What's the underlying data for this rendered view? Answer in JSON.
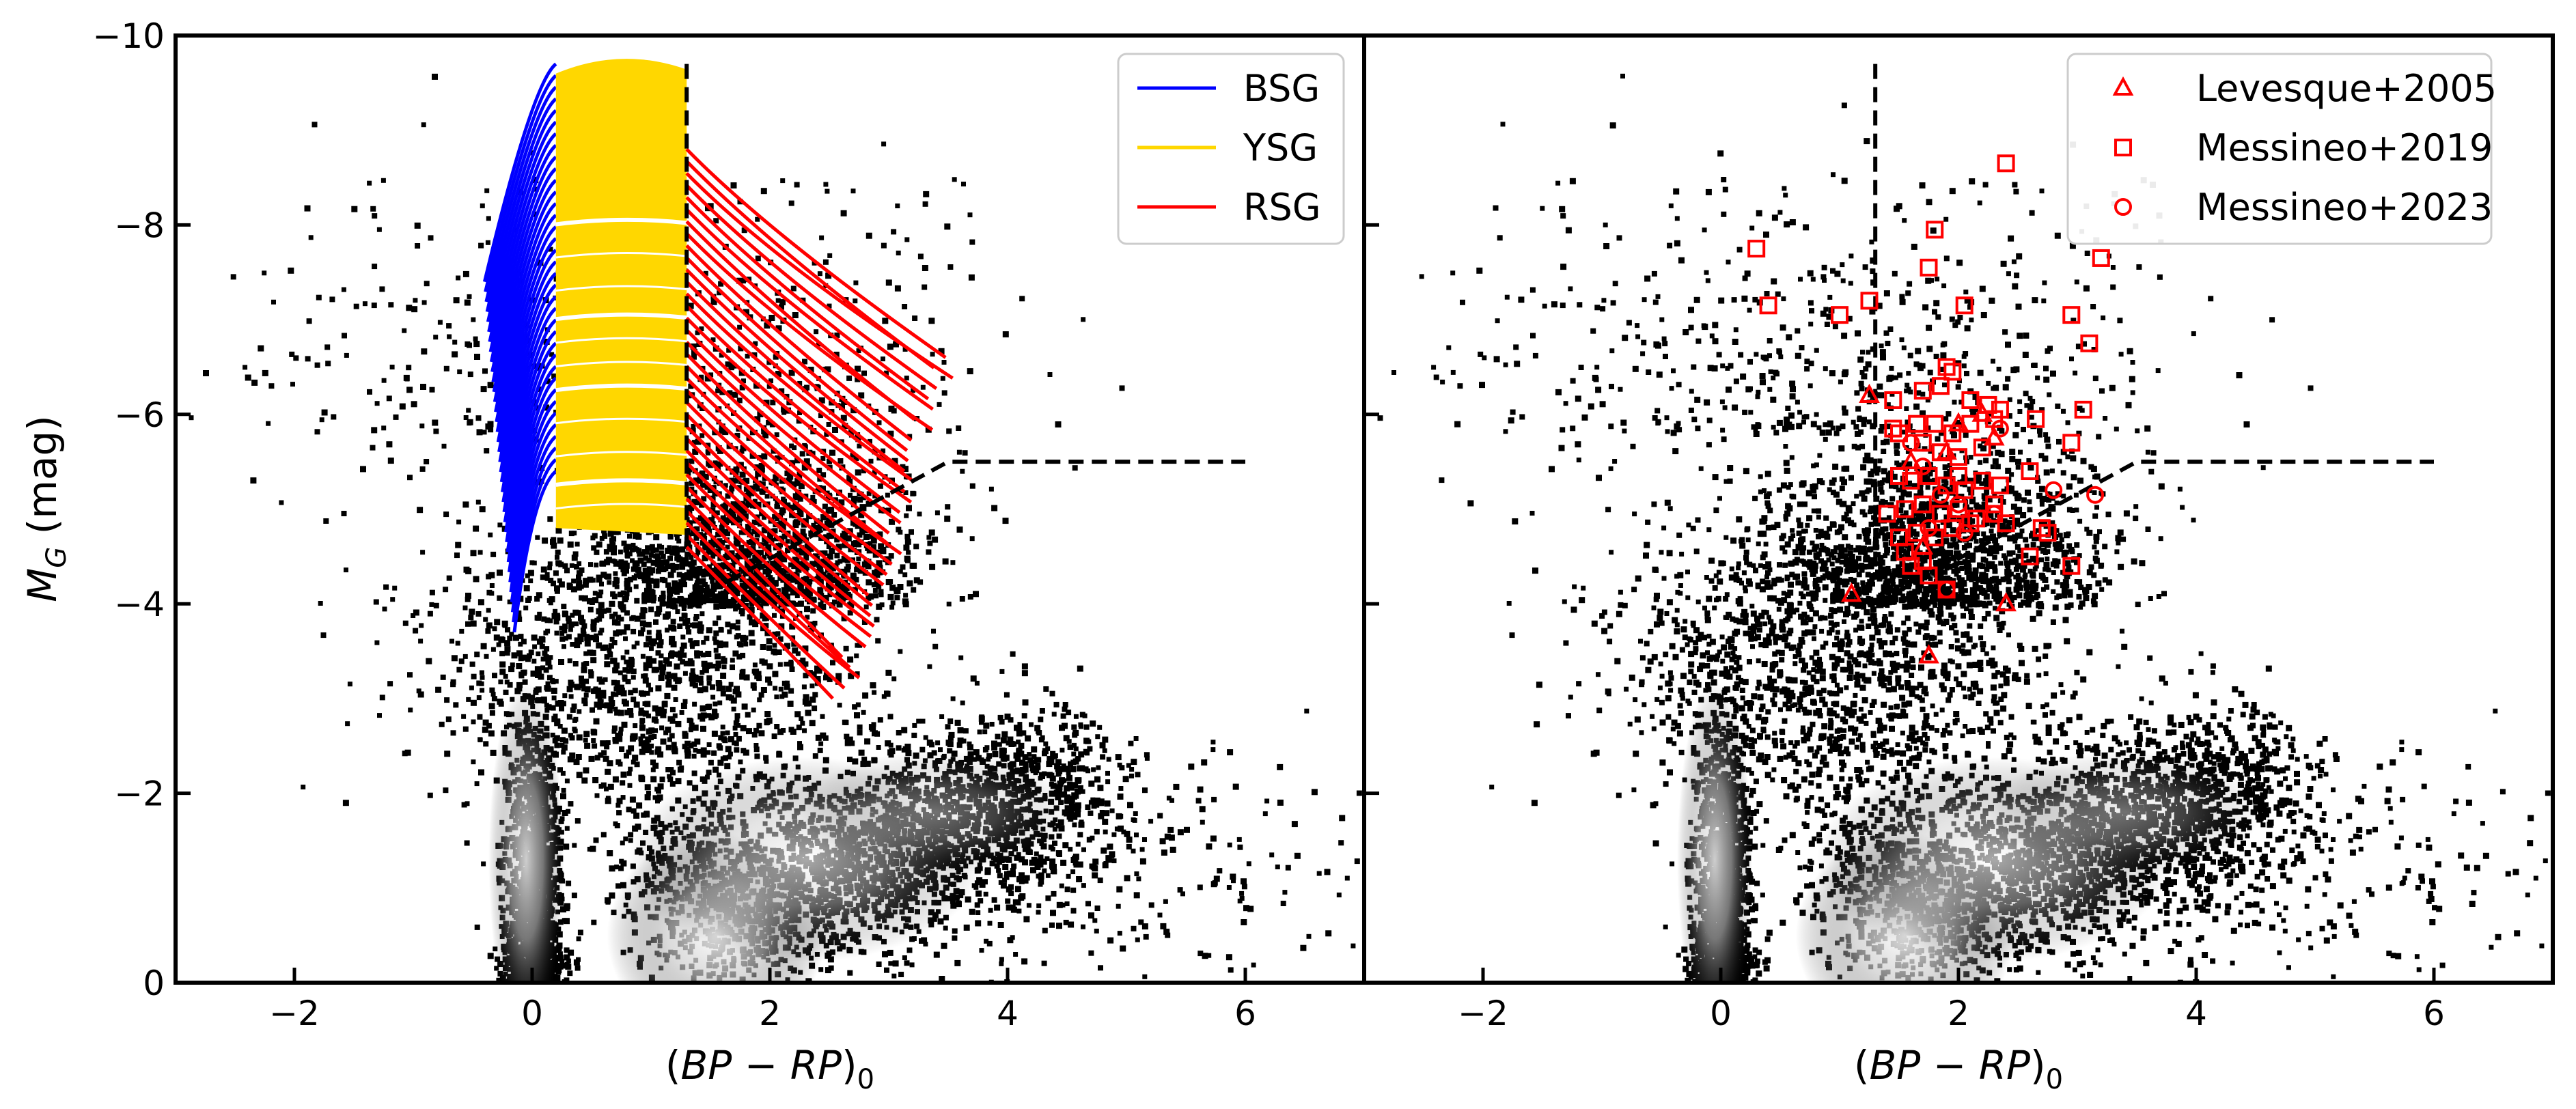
{
  "chart_data": [
    {
      "type": "scatter",
      "panel": "left",
      "title": "",
      "xlabel": "(BP − RP)₀",
      "xlabel_parts": [
        "(",
        "BP",
        " − ",
        "RP",
        ")",
        "0"
      ],
      "ylabel": "M_G (mag)",
      "ylabel_parts": [
        "M",
        "G",
        " (mag)"
      ],
      "xlim": [
        -3,
        7
      ],
      "ylim": [
        0,
        -10
      ],
      "y_inverted": true,
      "xticks": [
        -2,
        0,
        2,
        4,
        6
      ],
      "xtick_labels": [
        "−2",
        "0",
        "2",
        "4",
        "6"
      ],
      "yticks": [
        0,
        -2,
        -4,
        -6,
        -8,
        -10
      ],
      "ytick_labels": [
        "0",
        "−2",
        "−4",
        "−6",
        "−8",
        "−10"
      ],
      "background": "grayscale 2D density histogram of Gaia stars",
      "grid": false,
      "legend_position": "top-right",
      "legend": [
        {
          "label": "BSG",
          "color": "#0000ff",
          "marker": "line"
        },
        {
          "label": "YSG",
          "color": "#ffd700",
          "marker": "line"
        },
        {
          "label": "RSG",
          "color": "#ff0000",
          "marker": "line"
        }
      ],
      "dashed_lines": [
        {
          "type": "vertical",
          "x": 1.3,
          "y_range": [
            -9.7,
            -4.3
          ]
        },
        {
          "type": "polyline",
          "points": [
            [
              1.3,
              -4.0
            ],
            [
              3.5,
              -5.5
            ],
            [
              6.0,
              -5.5
            ]
          ]
        }
      ],
      "track_regions": [
        {
          "name": "BSG",
          "color": "#0000ff",
          "x_range": [
            -0.4,
            0.2
          ],
          "y_range": [
            -5.1,
            -9.7
          ]
        },
        {
          "name": "YSG",
          "color": "#ffd700",
          "x_range": [
            0.2,
            1.3
          ],
          "y_range": [
            -4.8,
            -9.8
          ]
        },
        {
          "name": "RSG",
          "color": "#ff0000",
          "x_range": [
            1.3,
            3.5
          ],
          "y_range": [
            -4.1,
            -8.8
          ]
        }
      ]
    },
    {
      "type": "scatter",
      "panel": "right",
      "title": "",
      "xlabel": "(BP − RP)₀",
      "xlabel_parts": [
        "(",
        "BP",
        " − ",
        "RP",
        ")",
        "0"
      ],
      "ylabel": "",
      "xlim": [
        -3,
        7
      ],
      "ylim": [
        0,
        -10
      ],
      "y_inverted": true,
      "xticks": [
        -2,
        0,
        2,
        4,
        6
      ],
      "xtick_labels": [
        "−2",
        "0",
        "2",
        "4",
        "6"
      ],
      "grid": false,
      "legend_position": "top-right",
      "marker_color": "#ff0000",
      "legend": [
        {
          "label": "Levesque+2005",
          "color": "#ff0000",
          "marker": "triangle-open"
        },
        {
          "label": "Messineo+2019",
          "color": "#ff0000",
          "marker": "square-open"
        },
        {
          "label": "Messineo+2023",
          "color": "#ff0000",
          "marker": "circle-open"
        }
      ],
      "dashed_lines": [
        {
          "type": "vertical",
          "x": 1.3,
          "y_range": [
            -9.7,
            -4.3
          ]
        },
        {
          "type": "polyline",
          "points": [
            [
              1.3,
              -4.0
            ],
            [
              3.5,
              -5.5
            ],
            [
              6.0,
              -5.5
            ]
          ]
        }
      ],
      "series": [
        {
          "name": "Levesque+2005",
          "marker": "triangle-open",
          "points": [
            [
              1.25,
              -6.2
            ],
            [
              2.3,
              -5.75
            ],
            [
              1.1,
              -4.1
            ],
            [
              1.75,
              -3.45
            ],
            [
              2.4,
              -4.0
            ],
            [
              2.0,
              -5.9
            ],
            [
              1.7,
              -4.6
            ],
            [
              2.2,
              -6.0
            ],
            [
              1.6,
              -5.5
            ],
            [
              1.9,
              -5.6
            ]
          ]
        },
        {
          "name": "Messineo+2019",
          "marker": "square-open",
          "points": [
            [
              0.3,
              -7.75
            ],
            [
              0.4,
              -7.15
            ],
            [
              1.0,
              -7.05
            ],
            [
              1.25,
              -7.2
            ],
            [
              1.8,
              -7.95
            ],
            [
              1.75,
              -7.55
            ],
            [
              2.05,
              -7.15
            ],
            [
              2.4,
              -8.65
            ],
            [
              3.2,
              -7.65
            ],
            [
              2.95,
              -7.05
            ],
            [
              3.1,
              -6.75
            ],
            [
              3.05,
              -6.05
            ],
            [
              2.95,
              -5.7
            ],
            [
              2.65,
              -5.95
            ],
            [
              1.9,
              -6.5
            ],
            [
              1.95,
              -6.45
            ],
            [
              1.7,
              -6.25
            ],
            [
              1.85,
              -6.3
            ],
            [
              2.1,
              -6.15
            ],
            [
              2.25,
              -6.1
            ],
            [
              2.35,
              -6.05
            ],
            [
              1.45,
              -6.15
            ],
            [
              1.45,
              -5.85
            ],
            [
              1.5,
              -5.8
            ],
            [
              1.65,
              -5.9
            ],
            [
              1.8,
              -5.9
            ],
            [
              1.95,
              -5.8
            ],
            [
              2.1,
              -5.9
            ],
            [
              2.3,
              -5.95
            ],
            [
              1.7,
              -5.7
            ],
            [
              1.85,
              -5.6
            ],
            [
              2.0,
              -5.55
            ],
            [
              2.2,
              -5.65
            ],
            [
              1.5,
              -5.35
            ],
            [
              1.6,
              -5.3
            ],
            [
              1.75,
              -5.35
            ],
            [
              1.9,
              -5.25
            ],
            [
              2.05,
              -5.2
            ],
            [
              2.2,
              -5.3
            ],
            [
              2.35,
              -5.25
            ],
            [
              2.6,
              -5.4
            ],
            [
              1.55,
              -5.0
            ],
            [
              1.7,
              -5.05
            ],
            [
              1.85,
              -4.95
            ],
            [
              2.0,
              -5.0
            ],
            [
              2.15,
              -4.9
            ],
            [
              2.3,
              -4.95
            ],
            [
              2.4,
              -4.85
            ],
            [
              1.5,
              -4.7
            ],
            [
              1.65,
              -4.75
            ],
            [
              1.8,
              -4.7
            ],
            [
              1.95,
              -4.8
            ],
            [
              2.1,
              -4.85
            ],
            [
              2.7,
              -4.8
            ],
            [
              2.75,
              -4.75
            ],
            [
              1.6,
              -4.4
            ],
            [
              1.75,
              -4.3
            ],
            [
              1.9,
              -4.15
            ],
            [
              2.6,
              -4.5
            ],
            [
              2.95,
              -4.4
            ],
            [
              1.4,
              -4.95
            ],
            [
              1.55,
              -4.55
            ],
            [
              1.7,
              -4.45
            ],
            [
              2.0,
              -5.35
            ],
            [
              2.3,
              -5.05
            ]
          ]
        },
        {
          "name": "Messineo+2023",
          "marker": "circle-open",
          "points": [
            [
              2.35,
              -5.85
            ],
            [
              2.8,
              -5.2
            ],
            [
              3.15,
              -5.15
            ],
            [
              2.3,
              -4.95
            ],
            [
              1.85,
              -5.15
            ],
            [
              1.6,
              -5.7
            ],
            [
              1.7,
              -5.45
            ],
            [
              2.05,
              -4.75
            ],
            [
              1.75,
              -4.8
            ],
            [
              1.9,
              -4.15
            ],
            [
              2.0,
              -5.05
            ]
          ]
        }
      ]
    }
  ]
}
